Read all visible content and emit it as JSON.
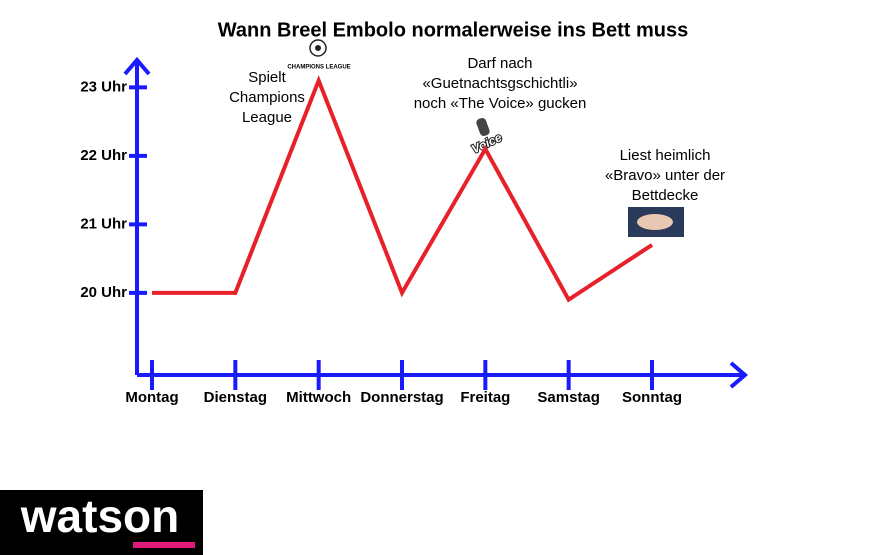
{
  "chart_data": {
    "type": "line",
    "title": "Wann Breel Embolo normalerweise ins Bett muss",
    "categories": [
      "Montag",
      "Dienstag",
      "Mittwoch",
      "Donnerstag",
      "Freitag",
      "Samstag",
      "Sonntag"
    ],
    "values": [
      20,
      20,
      23.1,
      20,
      22.1,
      19.9,
      20.7
    ],
    "color": "#e8202a",
    "axis_color": "#1a1aff",
    "ylim": [
      18.8,
      23.4
    ],
    "yticks": [
      {
        "value": 20,
        "label": "20 Uhr"
      },
      {
        "value": 21,
        "label": "21 Uhr"
      },
      {
        "value": 22,
        "label": "22 Uhr"
      },
      {
        "value": 23,
        "label": "23 Uhr"
      }
    ],
    "annotations": [
      {
        "lines": [
          "Spielt",
          "Champions",
          "League"
        ]
      },
      {
        "lines": [
          "Darf nach",
          "«Guetnachtsgschichtli»",
          "noch «The Voice» gucken"
        ]
      },
      {
        "lines": [
          "Liest heimlich",
          "«Bravo» unter der",
          "Bettdecke"
        ]
      }
    ],
    "icon_labels": [
      "CHAMPIONS LEAGUE",
      "Voice"
    ]
  },
  "brand": "watson"
}
